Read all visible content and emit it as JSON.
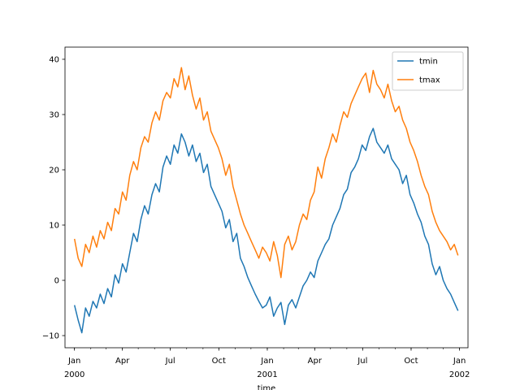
{
  "chart_data": {
    "type": "line",
    "title": "",
    "xlabel": "time",
    "ylabel": "",
    "xlim": [
      "1999-12-14",
      "2002-01-17"
    ],
    "ylim": [
      -12.2,
      42.2
    ],
    "yticks": [
      -10,
      0,
      10,
      20,
      30,
      40
    ],
    "xticks": [
      {
        "date": "2000-01-01",
        "label": "Jan",
        "label2": "2000"
      },
      {
        "date": "2000-04-01",
        "label": "Apr",
        "label2": ""
      },
      {
        "date": "2000-07-01",
        "label": "Jul",
        "label2": ""
      },
      {
        "date": "2000-10-01",
        "label": "Oct",
        "label2": ""
      },
      {
        "date": "2001-01-01",
        "label": "Jan",
        "label2": "2001"
      },
      {
        "date": "2001-04-01",
        "label": "Apr",
        "label2": ""
      },
      {
        "date": "2001-07-01",
        "label": "Jul",
        "label2": ""
      },
      {
        "date": "2001-10-01",
        "label": "Oct",
        "label2": ""
      },
      {
        "date": "2002-01-01",
        "label": "Jan",
        "label2": "2002"
      }
    ],
    "grid": false,
    "legend_position": "upper-right",
    "series": [
      {
        "name": "tmin",
        "color": "#1f77b4",
        "x": [
          "2000-01-01",
          "2000-01-08",
          "2000-01-15",
          "2000-01-22",
          "2000-01-29",
          "2000-02-05",
          "2000-02-12",
          "2000-02-19",
          "2000-02-26",
          "2000-03-04",
          "2000-03-11",
          "2000-03-18",
          "2000-03-25",
          "2000-04-01",
          "2000-04-08",
          "2000-04-15",
          "2000-04-22",
          "2000-04-29",
          "2000-05-06",
          "2000-05-13",
          "2000-05-20",
          "2000-05-27",
          "2000-06-03",
          "2000-06-10",
          "2000-06-17",
          "2000-06-24",
          "2000-07-01",
          "2000-07-08",
          "2000-07-15",
          "2000-07-22",
          "2000-07-29",
          "2000-08-05",
          "2000-08-12",
          "2000-08-19",
          "2000-08-26",
          "2000-09-02",
          "2000-09-09",
          "2000-09-16",
          "2000-09-23",
          "2000-09-30",
          "2000-10-07",
          "2000-10-14",
          "2000-10-21",
          "2000-10-28",
          "2000-11-04",
          "2000-11-11",
          "2000-11-18",
          "2000-11-25",
          "2000-12-02",
          "2000-12-09",
          "2000-12-16",
          "2000-12-23",
          "2000-12-30",
          "2001-01-06",
          "2001-01-13",
          "2001-01-20",
          "2001-01-27",
          "2001-02-03",
          "2001-02-10",
          "2001-02-17",
          "2001-02-24",
          "2001-03-03",
          "2001-03-10",
          "2001-03-17",
          "2001-03-24",
          "2001-03-31",
          "2001-04-07",
          "2001-04-14",
          "2001-04-21",
          "2001-04-28",
          "2001-05-05",
          "2001-05-12",
          "2001-05-19",
          "2001-05-26",
          "2001-06-02",
          "2001-06-09",
          "2001-06-16",
          "2001-06-23",
          "2001-06-30",
          "2001-07-07",
          "2001-07-14",
          "2001-07-21",
          "2001-07-28",
          "2001-08-04",
          "2001-08-11",
          "2001-08-18",
          "2001-08-25",
          "2001-09-01",
          "2001-09-08",
          "2001-09-15",
          "2001-09-22",
          "2001-09-29",
          "2001-10-06",
          "2001-10-13",
          "2001-10-20",
          "2001-10-27",
          "2001-11-03",
          "2001-11-10",
          "2001-11-17",
          "2001-11-24",
          "2001-12-01",
          "2001-12-08",
          "2001-12-15",
          "2001-12-22",
          "2001-12-29"
        ],
        "y": [
          -4.5,
          -7.2,
          -9.5,
          -5.0,
          -6.5,
          -3.8,
          -5.0,
          -2.5,
          -4.2,
          -1.5,
          -3.0,
          1.0,
          -0.5,
          3.0,
          1.5,
          5.0,
          8.5,
          7.0,
          11.0,
          13.5,
          12.0,
          15.5,
          17.5,
          16.0,
          20.5,
          22.5,
          21.0,
          24.5,
          23.0,
          26.5,
          25.0,
          22.5,
          24.5,
          21.5,
          23.0,
          19.5,
          21.0,
          17.0,
          15.5,
          14.0,
          12.5,
          9.5,
          11.0,
          7.0,
          8.5,
          4.0,
          2.5,
          0.5,
          -1.0,
          -2.5,
          -3.8,
          -5.0,
          -4.5,
          -3.0,
          -6.5,
          -5.0,
          -4.0,
          -8.0,
          -4.5,
          -3.5,
          -5.0,
          -3.0,
          -1.0,
          0.0,
          1.5,
          0.5,
          3.5,
          5.0,
          6.5,
          7.5,
          10.0,
          11.5,
          13.0,
          15.5,
          16.5,
          19.5,
          20.5,
          22.0,
          24.5,
          23.5,
          26.0,
          27.5,
          25.0,
          24.0,
          23.0,
          24.5,
          22.0,
          21.0,
          20.0,
          17.5,
          19.0,
          15.5,
          14.0,
          12.0,
          10.5,
          8.0,
          6.5,
          3.0,
          1.0,
          2.5,
          0.0,
          -1.5,
          -2.5,
          -4.0,
          -5.5
        ]
      },
      {
        "name": "tmax",
        "color": "#ff7f0e",
        "x": [
          "2000-01-01",
          "2000-01-08",
          "2000-01-15",
          "2000-01-22",
          "2000-01-29",
          "2000-02-05",
          "2000-02-12",
          "2000-02-19",
          "2000-02-26",
          "2000-03-04",
          "2000-03-11",
          "2000-03-18",
          "2000-03-25",
          "2000-04-01",
          "2000-04-08",
          "2000-04-15",
          "2000-04-22",
          "2000-04-29",
          "2000-05-06",
          "2000-05-13",
          "2000-05-20",
          "2000-05-27",
          "2000-06-03",
          "2000-06-10",
          "2000-06-17",
          "2000-06-24",
          "2000-07-01",
          "2000-07-08",
          "2000-07-15",
          "2000-07-22",
          "2000-07-29",
          "2000-08-05",
          "2000-08-12",
          "2000-08-19",
          "2000-08-26",
          "2000-09-02",
          "2000-09-09",
          "2000-09-16",
          "2000-09-23",
          "2000-09-30",
          "2000-10-07",
          "2000-10-14",
          "2000-10-21",
          "2000-10-28",
          "2000-11-04",
          "2000-11-11",
          "2000-11-18",
          "2000-11-25",
          "2000-12-02",
          "2000-12-09",
          "2000-12-16",
          "2000-12-23",
          "2000-12-30",
          "2001-01-06",
          "2001-01-13",
          "2001-01-20",
          "2001-01-27",
          "2001-02-03",
          "2001-02-10",
          "2001-02-17",
          "2001-02-24",
          "2001-03-03",
          "2001-03-10",
          "2001-03-17",
          "2001-03-24",
          "2001-03-31",
          "2001-04-07",
          "2001-04-14",
          "2001-04-21",
          "2001-04-28",
          "2001-05-05",
          "2001-05-12",
          "2001-05-19",
          "2001-05-26",
          "2001-06-02",
          "2001-06-09",
          "2001-06-16",
          "2001-06-23",
          "2001-06-30",
          "2001-07-07",
          "2001-07-14",
          "2001-07-21",
          "2001-07-28",
          "2001-08-04",
          "2001-08-11",
          "2001-08-18",
          "2001-08-25",
          "2001-09-01",
          "2001-09-08",
          "2001-09-15",
          "2001-09-22",
          "2001-09-29",
          "2001-10-06",
          "2001-10-13",
          "2001-10-20",
          "2001-10-27",
          "2001-11-03",
          "2001-11-10",
          "2001-11-17",
          "2001-11-24",
          "2001-12-01",
          "2001-12-08",
          "2001-12-15",
          "2001-12-22",
          "2001-12-29"
        ],
        "y": [
          7.5,
          4.0,
          2.5,
          6.5,
          5.0,
          8.0,
          6.0,
          9.0,
          7.5,
          10.5,
          9.0,
          13.0,
          12.0,
          16.0,
          14.5,
          19.0,
          21.5,
          20.0,
          24.0,
          26.0,
          25.0,
          28.5,
          30.5,
          29.0,
          32.5,
          34.0,
          33.0,
          36.5,
          35.0,
          38.5,
          34.5,
          37.0,
          33.5,
          31.0,
          33.0,
          29.0,
          30.5,
          27.0,
          25.5,
          24.0,
          22.0,
          19.0,
          21.0,
          17.0,
          14.5,
          12.0,
          10.0,
          8.5,
          7.0,
          5.5,
          4.0,
          6.0,
          5.0,
          3.5,
          7.0,
          4.5,
          0.5,
          6.5,
          8.0,
          5.5,
          7.0,
          10.0,
          12.0,
          11.0,
          14.5,
          16.0,
          20.5,
          18.5,
          22.0,
          24.0,
          26.5,
          25.0,
          28.0,
          30.5,
          29.5,
          32.0,
          33.5,
          35.0,
          36.5,
          37.5,
          34.0,
          38.0,
          35.5,
          34.5,
          33.0,
          35.5,
          32.5,
          30.5,
          31.5,
          29.0,
          27.5,
          25.0,
          23.5,
          21.5,
          19.0,
          17.0,
          15.5,
          12.5,
          10.5,
          9.0,
          8.0,
          7.0,
          5.5,
          6.5,
          4.5
        ]
      }
    ]
  }
}
